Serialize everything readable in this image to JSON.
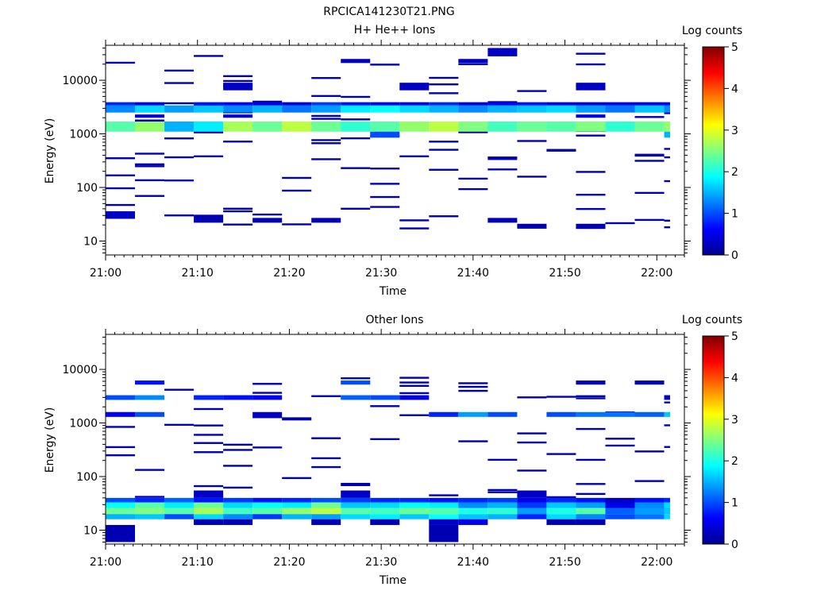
{
  "figure": {
    "title": "RPCICA141230T21.PNG"
  },
  "chart_data": [
    {
      "type": "heatmap",
      "title": "H+ He++ Ions",
      "xlabel": "Time",
      "ylabel": "Energy (eV)",
      "x_ticks": [
        "21:00",
        "21:10",
        "21:20",
        "21:30",
        "21:40",
        "21:50",
        "22:00"
      ],
      "x_range_minutes": [
        0,
        63
      ],
      "y_scale": "log",
      "y_ticks": [
        "10",
        "100",
        "1000",
        "10000"
      ],
      "ylim": [
        5.5,
        45000
      ],
      "colorbar": {
        "label": "Log counts",
        "range": [
          0,
          5
        ],
        "ticks": [
          "0",
          "1",
          "2",
          "3",
          "4",
          "5"
        ]
      },
      "time_bins_minutes": [
        0,
        3.2,
        6.4,
        9.6,
        12.8,
        16,
        19.2,
        22.4,
        25.6,
        28.8,
        32,
        35.2,
        38.4,
        41.6,
        44.8,
        48,
        51.2,
        54.4,
        57.6,
        60.8,
        64
      ],
      "bands": [
        {
          "e0": 1100,
          "e1": 1700,
          "levels": [
            2.3,
            2.6,
            1.5,
            1.8,
            2.7,
            2.4,
            2.8,
            2.4,
            2.1,
            2.3,
            2.6,
            2.8,
            2.5,
            2.2,
            2.4,
            2.3,
            2.5,
            2.1,
            2.4,
            2.6
          ]
        },
        {
          "e0": 850,
          "e1": 1100,
          "levels": [
            0,
            0,
            0,
            0,
            0,
            0,
            0,
            0,
            0,
            1.0,
            0,
            0,
            0,
            0,
            0,
            0,
            0,
            0,
            0,
            1.5
          ]
        },
        {
          "e0": 2500,
          "e1": 3400,
          "levels": [
            1.3,
            1.7,
            1.4,
            1.6,
            1.3,
            1.5,
            1.2,
            1.4,
            1.8,
            1.9,
            1.7,
            1.5,
            1.3,
            1.5,
            1.6,
            1.7,
            1.4,
            1.2,
            1.6,
            1.3
          ]
        },
        {
          "e0": 3400,
          "e1": 3900,
          "levels": [
            0.8,
            0.5,
            0,
            0.7,
            0.6,
            0.5,
            0.4,
            0.9,
            0.7,
            0.6,
            0.5,
            0.8,
            0.4,
            0.6,
            0.7,
            0.5,
            0.4,
            0.6,
            0.5,
            0.6
          ]
        },
        {
          "e0": 2000,
          "e1": 2300,
          "levels": [
            0,
            0.4,
            0,
            0,
            0.4,
            0,
            0,
            0,
            0,
            0,
            0,
            0,
            0,
            0,
            0,
            0,
            0.5,
            0,
            0,
            0
          ]
        },
        {
          "e0": 26,
          "e1": 36,
          "levels": [
            0.3,
            0,
            0,
            0,
            0,
            0,
            0,
            0,
            0,
            0,
            0,
            0,
            0,
            0,
            0,
            0,
            0,
            0,
            0,
            0
          ]
        },
        {
          "e0": 22,
          "e1": 31,
          "levels": [
            0,
            0,
            0,
            0.2,
            0,
            0,
            0,
            0,
            0,
            0,
            0,
            0,
            0,
            0,
            0,
            0,
            0,
            0,
            0,
            0
          ]
        },
        {
          "e0": 22,
          "e1": 27,
          "levels": [
            0,
            0,
            0,
            0,
            0,
            0.2,
            0,
            0.2,
            0,
            0,
            0,
            0,
            0,
            0.2,
            0,
            0,
            0,
            0,
            0,
            0
          ]
        },
        {
          "e0": 17,
          "e1": 21,
          "levels": [
            0,
            0,
            0,
            0,
            0,
            0,
            0,
            0,
            0,
            0,
            0,
            0,
            0,
            0,
            0.2,
            0,
            0.2,
            0,
            0,
            0
          ]
        },
        {
          "e0": 6500,
          "e1": 9000,
          "levels": [
            0,
            0,
            0,
            0,
            0.3,
            0,
            0,
            0,
            0,
            0,
            0.3,
            0,
            0,
            0,
            0,
            0,
            0.3,
            0,
            0,
            0
          ]
        },
        {
          "e0": 28000,
          "e1": 40000,
          "levels": [
            0,
            0,
            0,
            0,
            0,
            0,
            0,
            0,
            0,
            0,
            0,
            0,
            0,
            0.3,
            0,
            0,
            0,
            0,
            0,
            0
          ]
        },
        {
          "e0": 21000,
          "e1": 25000,
          "levels": [
            0,
            0,
            0,
            0,
            0,
            0,
            0,
            0,
            0.3,
            0,
            0,
            0,
            0.3,
            0,
            0,
            0,
            0,
            0,
            0,
            0
          ]
        }
      ],
      "sparse_lines_note": "thin single-bin streaks at ~0.2 log counts"
    },
    {
      "type": "heatmap",
      "title": "Other Ions",
      "xlabel": "Time",
      "ylabel": "Energy (eV)",
      "x_ticks": [
        "21:00",
        "21:10",
        "21:20",
        "21:30",
        "21:40",
        "21:50",
        "22:00"
      ],
      "x_range_minutes": [
        0,
        63
      ],
      "y_scale": "log",
      "y_ticks": [
        "10",
        "100",
        "1000",
        "10000"
      ],
      "ylim": [
        5.5,
        45000
      ],
      "colorbar": {
        "label": "Log counts",
        "range": [
          0,
          5
        ],
        "ticks": [
          "0",
          "1",
          "2",
          "3",
          "4",
          "5"
        ]
      },
      "time_bins_minutes": [
        0,
        3.2,
        6.4,
        9.6,
        12.8,
        16,
        19.2,
        22.4,
        25.6,
        28.8,
        32,
        35.2,
        38.4,
        41.6,
        44.8,
        48,
        51.2,
        54.4,
        57.6,
        60.8,
        64
      ],
      "bands": [
        {
          "e0": 16,
          "e1": 20,
          "levels": [
            1.5,
            1.6,
            1.0,
            1.7,
            1.3,
            0.9,
            1.5,
            1.4,
            1.7,
            1.8,
            1.6,
            1.9,
            1.6,
            1.5,
            0.8,
            1.7,
            1.3,
            1.0,
            1.2,
            1.7
          ]
        },
        {
          "e0": 20,
          "e1": 26,
          "levels": [
            2.4,
            2.5,
            2.3,
            2.7,
            2.2,
            2.3,
            2.6,
            2.8,
            2.3,
            2.2,
            2.4,
            2.3,
            2.0,
            2.1,
            1.4,
            2.0,
            2.3,
            1.1,
            1.4,
            1.6
          ]
        },
        {
          "e0": 26,
          "e1": 33,
          "levels": [
            1.9,
            2.3,
            1.8,
            2.4,
            1.7,
            1.9,
            1.8,
            2.4,
            1.6,
            1.7,
            1.9,
            1.8,
            1.3,
            1.5,
            0.9,
            1.6,
            1.4,
            0.5,
            1.3,
            1.7
          ]
        },
        {
          "e0": 33,
          "e1": 40,
          "levels": [
            1.0,
            0.8,
            1.1,
            0.7,
            0.9,
            0.7,
            0.8,
            1.0,
            0.9,
            0.8,
            0.8,
            0.7,
            0.8,
            0.9,
            0.5,
            0.8,
            0.7,
            0.3,
            0.7,
            0.8
          ]
        },
        {
          "e0": 40,
          "e1": 55,
          "levels": [
            0,
            0,
            0,
            0.3,
            0,
            0,
            0,
            0,
            0.3,
            0,
            0,
            0,
            0,
            0,
            0.3,
            0,
            0,
            0,
            0,
            0
          ]
        },
        {
          "e0": 12.5,
          "e1": 16,
          "levels": [
            0,
            0,
            0,
            0.2,
            0.2,
            0,
            0,
            0.2,
            0,
            0.2,
            0,
            0.3,
            0.5,
            0,
            0,
            0.2,
            0.2,
            0,
            0,
            0
          ]
        },
        {
          "e0": 6,
          "e1": 12.5,
          "levels": [
            0.2,
            0,
            0,
            0,
            0,
            0,
            0,
            0,
            0,
            0,
            0,
            0.2,
            0,
            0,
            0,
            0,
            0,
            0,
            0,
            0
          ]
        },
        {
          "e0": 2700,
          "e1": 3300,
          "levels": [
            1.0,
            1.3,
            0,
            0.8,
            0.7,
            0.6,
            0,
            0,
            1.1,
            1.0,
            0.5,
            0,
            0,
            0,
            0,
            0,
            0,
            0,
            0,
            0.3
          ]
        },
        {
          "e0": 1300,
          "e1": 1600,
          "levels": [
            0.6,
            1.0,
            0,
            0,
            0,
            0.3,
            0,
            0,
            0,
            0,
            0,
            0.8,
            1.4,
            1.0,
            0,
            1.0,
            1.2,
            1.2,
            1.1,
            1.6
          ]
        },
        {
          "e0": 5200,
          "e1": 6200,
          "levels": [
            0,
            0.7,
            0,
            0,
            0,
            0,
            0,
            0,
            1.0,
            0,
            0,
            0,
            0,
            0,
            0,
            0,
            0.2,
            0,
            0.2,
            0
          ]
        }
      ],
      "sparse_lines_note": "thin single-bin streaks at ~0.2 log counts"
    }
  ]
}
